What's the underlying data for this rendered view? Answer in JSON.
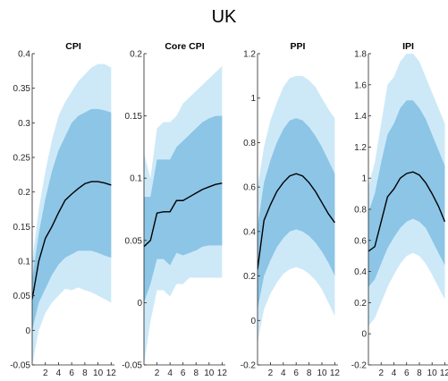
{
  "figure_title": "UK",
  "colors": {
    "outer_band": "#cde9f8",
    "inner_band": "#8cc5e6",
    "median_line": "#000000",
    "axis": "#262626"
  },
  "chart_data": [
    {
      "type": "area",
      "title": "CPI",
      "x": [
        0,
        1,
        2,
        3,
        4,
        5,
        6,
        7,
        8,
        9,
        10,
        11,
        12
      ],
      "xticks": [
        2,
        4,
        6,
        8,
        10,
        12
      ],
      "xtick_labels": [
        "2",
        "4",
        "6",
        "8",
        "10",
        "12"
      ],
      "xlim": [
        0,
        12.5
      ],
      "ylim": [
        -0.05,
        0.4
      ],
      "yticks": [
        -0.05,
        0,
        0.05,
        0.1,
        0.15,
        0.2,
        0.25,
        0.3,
        0.35,
        0.4
      ],
      "ytick_labels": [
        "-0.05",
        "0",
        "0.05",
        "0.1",
        "0.15",
        "0.2",
        "0.25",
        "0.3",
        "0.35",
        "0.4"
      ],
      "series": [
        {
          "role": "outer_band",
          "upper": [
            0.1,
            0.175,
            0.23,
            0.275,
            0.31,
            0.33,
            0.345,
            0.36,
            0.37,
            0.38,
            0.385,
            0.385,
            0.38
          ],
          "lower": [
            -0.05,
            0.0,
            0.025,
            0.04,
            0.05,
            0.06,
            0.058,
            0.062,
            0.058,
            0.055,
            0.05,
            0.045,
            0.04
          ]
        },
        {
          "role": "inner_band",
          "upper": [
            0.075,
            0.14,
            0.19,
            0.23,
            0.26,
            0.28,
            0.3,
            0.31,
            0.315,
            0.32,
            0.32,
            0.318,
            0.315
          ],
          "lower": [
            0.0,
            0.04,
            0.06,
            0.08,
            0.095,
            0.105,
            0.11,
            0.115,
            0.115,
            0.115,
            0.112,
            0.108,
            0.105
          ]
        },
        {
          "role": "median",
          "values": [
            0.045,
            0.1,
            0.133,
            0.15,
            0.17,
            0.188,
            0.197,
            0.205,
            0.212,
            0.215,
            0.215,
            0.213,
            0.21
          ]
        }
      ]
    },
    {
      "type": "area",
      "title": "Core CPI",
      "x": [
        0,
        1,
        2,
        3,
        4,
        5,
        6,
        7,
        8,
        9,
        10,
        11,
        12
      ],
      "xticks": [
        2,
        4,
        6,
        8,
        10,
        12
      ],
      "xtick_labels": [
        "2",
        "4",
        "6",
        "8",
        "10",
        "12"
      ],
      "xlim": [
        0,
        12.5
      ],
      "ylim": [
        -0.05,
        0.2
      ],
      "yticks": [
        -0.05,
        0,
        0.05,
        0.1,
        0.15,
        0.2
      ],
      "ytick_labels": [
        "-0.05",
        "0",
        "0.05",
        "0.1",
        "0.15",
        "0.2"
      ],
      "series": [
        {
          "role": "outer_band",
          "upper": [
            0.12,
            0.1,
            0.14,
            0.145,
            0.145,
            0.15,
            0.16,
            0.165,
            0.17,
            0.175,
            0.18,
            0.185,
            0.19
          ],
          "lower": [
            -0.05,
            -0.015,
            0.01,
            0.01,
            0.005,
            0.015,
            0.015,
            0.02,
            0.02,
            0.02,
            0.02,
            0.02,
            0.02
          ]
        },
        {
          "role": "inner_band",
          "upper": [
            0.085,
            0.085,
            0.115,
            0.115,
            0.115,
            0.125,
            0.13,
            0.135,
            0.14,
            0.145,
            0.148,
            0.15,
            0.15
          ],
          "lower": [
            0.0,
            0.015,
            0.035,
            0.035,
            0.03,
            0.04,
            0.038,
            0.04,
            0.042,
            0.045,
            0.046,
            0.046,
            0.046
          ]
        },
        {
          "role": "median",
          "values": [
            0.045,
            0.05,
            0.072,
            0.073,
            0.073,
            0.082,
            0.082,
            0.085,
            0.088,
            0.091,
            0.093,
            0.095,
            0.096
          ]
        }
      ]
    },
    {
      "type": "area",
      "title": "PPI",
      "x": [
        0,
        1,
        2,
        3,
        4,
        5,
        6,
        7,
        8,
        9,
        10,
        11,
        12
      ],
      "xticks": [
        2,
        4,
        6,
        8,
        10,
        12
      ],
      "xtick_labels": [
        "2",
        "4",
        "6",
        "8",
        "10",
        "12"
      ],
      "xlim": [
        0,
        12.5
      ],
      "ylim": [
        -0.2,
        1.2
      ],
      "yticks": [
        -0.2,
        0,
        0.2,
        0.4,
        0.6,
        0.8,
        1,
        1.2
      ],
      "ytick_labels": [
        "-0.2",
        "0",
        "0.2",
        "0.4",
        "0.6",
        "0.8",
        "1",
        "1.2"
      ],
      "series": [
        {
          "role": "outer_band",
          "upper": [
            0.6,
            0.78,
            0.9,
            0.98,
            1.05,
            1.09,
            1.1,
            1.1,
            1.08,
            1.05,
            1.0,
            0.95,
            0.91
          ],
          "lower": [
            -0.1,
            0.05,
            0.12,
            0.17,
            0.21,
            0.23,
            0.24,
            0.23,
            0.21,
            0.18,
            0.14,
            0.08,
            0.02
          ]
        },
        {
          "role": "inner_band",
          "upper": [
            0.42,
            0.62,
            0.72,
            0.8,
            0.86,
            0.9,
            0.91,
            0.9,
            0.87,
            0.83,
            0.78,
            0.72,
            0.66
          ],
          "lower": [
            0.05,
            0.2,
            0.27,
            0.33,
            0.37,
            0.4,
            0.41,
            0.4,
            0.38,
            0.35,
            0.31,
            0.26,
            0.2
          ]
        },
        {
          "role": "median",
          "values": [
            0.23,
            0.45,
            0.52,
            0.58,
            0.62,
            0.65,
            0.66,
            0.65,
            0.62,
            0.58,
            0.53,
            0.48,
            0.44
          ]
        }
      ]
    },
    {
      "type": "area",
      "title": "IPI",
      "x": [
        0,
        1,
        2,
        3,
        4,
        5,
        6,
        7,
        8,
        9,
        10,
        11,
        12
      ],
      "xticks": [
        2,
        4,
        6,
        8,
        10,
        12
      ],
      "xtick_labels": [
        "2",
        "4",
        "6",
        "8",
        "10",
        "12"
      ],
      "xlim": [
        0,
        12.5
      ],
      "ylim": [
        -0.2,
        1.8
      ],
      "yticks": [
        -0.2,
        0,
        0.2,
        0.4,
        0.6,
        0.8,
        1,
        1.2,
        1.4,
        1.6,
        1.8
      ],
      "ytick_labels": [
        "-0.2",
        "0",
        "0.2",
        "0.4",
        "0.6",
        "0.8",
        "1",
        "1.2",
        "1.4",
        "1.6",
        "1.8"
      ],
      "series": [
        {
          "role": "outer_band",
          "upper": [
            0.95,
            1.1,
            1.35,
            1.6,
            1.65,
            1.75,
            1.8,
            1.8,
            1.75,
            1.65,
            1.55,
            1.45,
            1.35
          ],
          "lower": [
            0.05,
            0.1,
            0.2,
            0.3,
            0.38,
            0.45,
            0.5,
            0.52,
            0.5,
            0.45,
            0.38,
            0.3,
            0.22
          ]
        },
        {
          "role": "inner_band",
          "upper": [
            0.78,
            0.9,
            1.1,
            1.28,
            1.35,
            1.45,
            1.5,
            1.5,
            1.45,
            1.38,
            1.28,
            1.18,
            1.08
          ],
          "lower": [
            0.3,
            0.35,
            0.45,
            0.55,
            0.62,
            0.68,
            0.72,
            0.74,
            0.72,
            0.68,
            0.6,
            0.52,
            0.44
          ]
        },
        {
          "role": "median",
          "values": [
            0.53,
            0.56,
            0.72,
            0.88,
            0.93,
            1.0,
            1.03,
            1.04,
            1.02,
            0.97,
            0.9,
            0.82,
            0.72
          ]
        }
      ]
    }
  ]
}
